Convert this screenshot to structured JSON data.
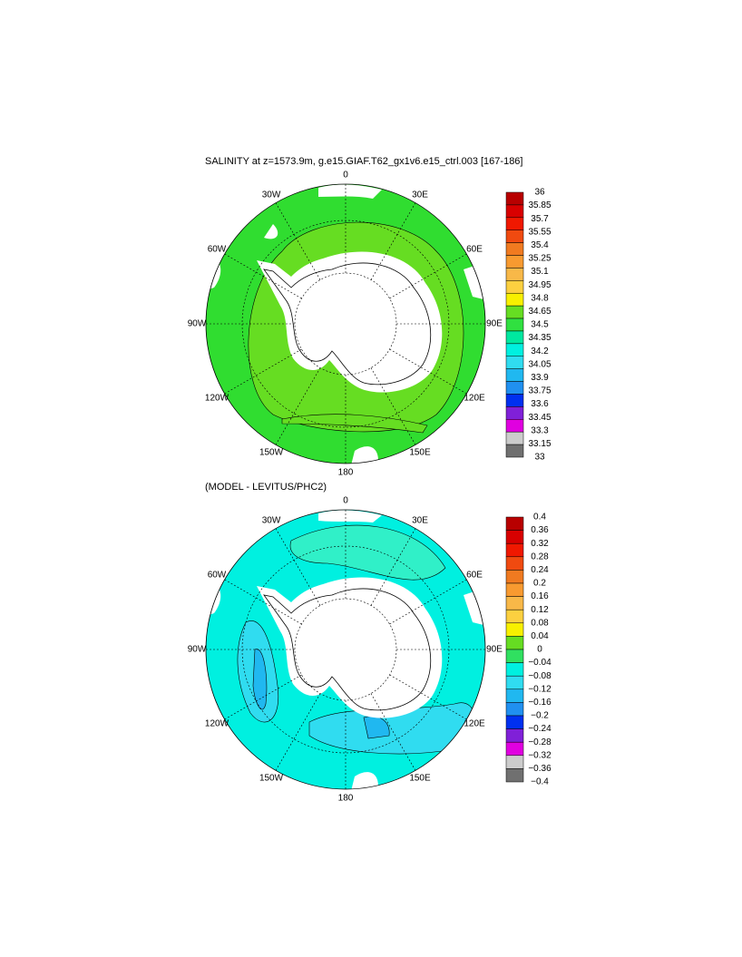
{
  "panels": [
    {
      "title": "SALINITY at z=1573.9m, g.e15.GIAF.T62_gx1v6.e15_ctrl.003 [167-186]",
      "longitude_labels": [
        "0",
        "30E",
        "60E",
        "90E",
        "120E",
        "150E",
        "180",
        "150W",
        "120W",
        "90W",
        "60W",
        "30W"
      ],
      "colorbar": {
        "labels": [
          "36",
          "35.85",
          "35.7",
          "35.55",
          "35.4",
          "35.25",
          "35.1",
          "34.95",
          "34.8",
          "34.65",
          "34.5",
          "34.35",
          "34.2",
          "34.05",
          "33.9",
          "33.75",
          "33.6",
          "33.45",
          "33.3",
          "33.15",
          "33"
        ],
        "colors": [
          "#b80000",
          "#d80000",
          "#f01800",
          "#f04a10",
          "#f07a20",
          "#f89a30",
          "#f8b848",
          "#fcd040",
          "#f8f000",
          "#66dd22",
          "#30e040",
          "#00e8a0",
          "#00f0e0",
          "#30dcf0",
          "#20b8f0",
          "#2090f0",
          "#0030f0",
          "#8020d8",
          "#e000e0",
          "#cccccc",
          "#707070"
        ]
      }
    },
    {
      "title": "(MODEL - LEVITUS/PHC2)",
      "longitude_labels": [
        "0",
        "30E",
        "60E",
        "90E",
        "120E",
        "150E",
        "180",
        "150W",
        "120W",
        "90W",
        "60W",
        "30W"
      ],
      "colorbar": {
        "labels": [
          "0.4",
          "0.36",
          "0.32",
          "0.28",
          "0.24",
          "0.2",
          "0.16",
          "0.12",
          "0.08",
          "0.04",
          "0",
          "−0.04",
          "−0.08",
          "−0.12",
          "−0.16",
          "−0.2",
          "−0.24",
          "−0.28",
          "−0.32",
          "−0.36",
          "−0.4"
        ],
        "colors": [
          "#b80000",
          "#d80000",
          "#f01800",
          "#f04a10",
          "#f07a20",
          "#f89a30",
          "#f8b848",
          "#fcd040",
          "#f8f000",
          "#66dd22",
          "#30e060",
          "#00f0e0",
          "#30dcf0",
          "#20b8f0",
          "#2090f0",
          "#0030f0",
          "#8020d8",
          "#e000e0",
          "#cccccc",
          "#707070"
        ]
      }
    }
  ]
}
